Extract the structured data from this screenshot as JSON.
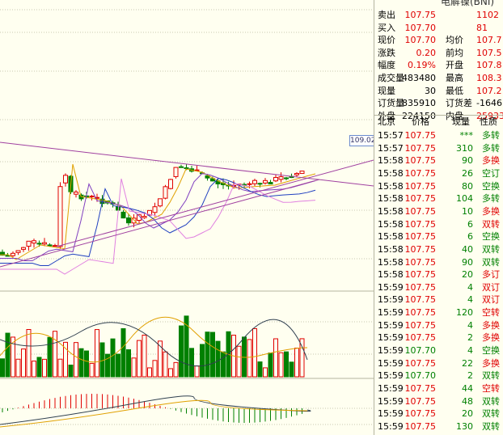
{
  "header": {
    "title": "电解镍(BNI)"
  },
  "price_tag": "109.02",
  "quote": [
    [
      "卖出",
      "107.75",
      "",
      "1102"
    ],
    [
      "买入",
      "107.70",
      "",
      "81"
    ],
    [
      "现价",
      "107.70",
      "均价",
      "107.7"
    ],
    [
      "涨跌",
      "0.20",
      "前均",
      "107.5"
    ],
    [
      "幅度",
      "0.19%",
      "开盘",
      "107.8"
    ],
    [
      "成交量",
      "483480",
      "最高",
      "108.3"
    ],
    [
      "现量",
      "30",
      "最低",
      "107.2"
    ],
    [
      "订货量",
      "835910",
      "订货差",
      "-1646"
    ],
    [
      "外盘",
      "224150",
      "内盘",
      "25933"
    ]
  ],
  "ticks_header": [
    "北京",
    "价格",
    "现量",
    "性质"
  ],
  "ticks": [
    [
      "15:57",
      "107.75",
      "***",
      "多转",
      "grn"
    ],
    [
      "15:57",
      "107.75",
      "310",
      "多转",
      "grn"
    ],
    [
      "15:58",
      "107.75",
      "90",
      "多换",
      "red"
    ],
    [
      "15:58",
      "107.75",
      "26",
      "空订",
      "grn"
    ],
    [
      "15:58",
      "107.75",
      "80",
      "空换",
      "grn"
    ],
    [
      "15:58",
      "107.75",
      "104",
      "多转",
      "grn"
    ],
    [
      "15:58",
      "107.75",
      "10",
      "多换",
      "red"
    ],
    [
      "15:58",
      "107.75",
      "6",
      "双转",
      "red"
    ],
    [
      "15:58",
      "107.75",
      "6",
      "空换",
      "grn"
    ],
    [
      "15:58",
      "107.75",
      "40",
      "双转",
      "grn"
    ],
    [
      "15:58",
      "107.75",
      "90",
      "双转",
      "grn"
    ],
    [
      "15:58",
      "107.75",
      "20",
      "多订",
      "red"
    ],
    [
      "15:59",
      "107.75",
      "4",
      "双订",
      "red"
    ],
    [
      "15:59",
      "107.75",
      "4",
      "双订",
      "red"
    ],
    [
      "15:59",
      "107.75",
      "120",
      "空转",
      "red"
    ],
    [
      "15:59",
      "107.75",
      "4",
      "多换",
      "red"
    ],
    [
      "15:59",
      "107.75",
      "2",
      "多换",
      "red"
    ],
    [
      "15:59",
      "107.70",
      "4",
      "空换",
      "grn"
    ],
    [
      "15:59",
      "107.75",
      "22",
      "多换",
      "red"
    ],
    [
      "15:59",
      "107.70",
      "2",
      "双转",
      "grn"
    ],
    [
      "15:59",
      "107.75",
      "44",
      "空转",
      "red"
    ],
    [
      "15:59",
      "107.75",
      "48",
      "双转",
      "grn"
    ],
    [
      "15:59",
      "107.75",
      "20",
      "双转",
      "grn"
    ],
    [
      "15:59",
      "107.75",
      "130",
      "双转",
      "grn"
    ]
  ]
}
